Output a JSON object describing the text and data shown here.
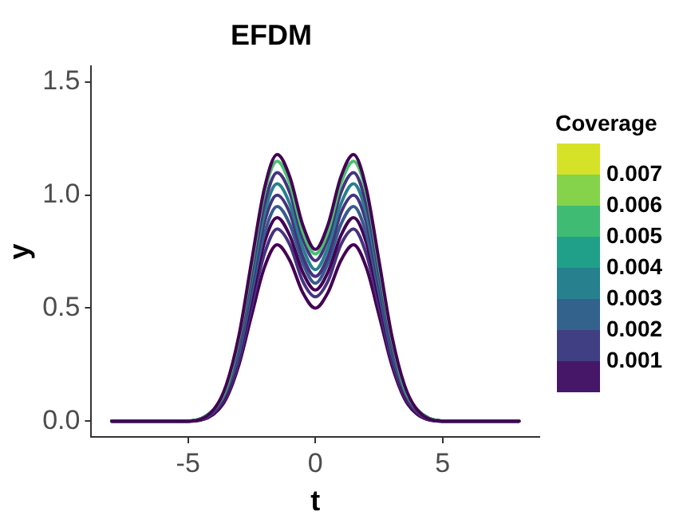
{
  "chart_data": {
    "type": "line",
    "title": "EFDM",
    "xlabel": "t",
    "ylabel": "y",
    "clabel": "Coverage",
    "clim": [
      0,
      0.008
    ],
    "cticks": [
      0.001,
      0.002,
      0.003,
      0.004,
      0.005,
      0.006,
      0.007
    ],
    "x": [
      -8,
      -5,
      -4,
      -3.5,
      -3,
      -2.5,
      -2,
      -1.5,
      -1,
      -0.5,
      0,
      0.5,
      1,
      1.5,
      2,
      2.5,
      3,
      3.5,
      4,
      5,
      8
    ],
    "xlim": [
      -8.8,
      8.8
    ],
    "xticks": [
      -5,
      0,
      5
    ],
    "ylim": [
      -0.07,
      1.57
    ],
    "yticks": [
      {
        "value": 0,
        "label": "0.0"
      },
      0.5,
      {
        "value": 1,
        "label": "1.0"
      },
      1.5
    ],
    "grid": false,
    "legend": false,
    "marker": "none",
    "line_style": "solid",
    "series": [
      {
        "color": "#440154",
        "values": [
          0,
          0,
          0.05,
          0.16,
          0.38,
          0.71,
          1.03,
          1.18,
          1.08,
          0.87,
          0.76,
          0.87,
          1.08,
          1.18,
          1.03,
          0.71,
          0.38,
          0.16,
          0.05,
          0,
          0
        ]
      },
      {
        "color": "#4ac16d",
        "values": [
          0,
          0,
          0.05,
          0.15,
          0.37,
          0.69,
          1.01,
          1.15,
          1.05,
          0.84,
          0.74,
          0.84,
          1.05,
          1.15,
          1.01,
          0.69,
          0.37,
          0.15,
          0.05,
          0,
          0
        ]
      },
      {
        "color": "#46337e",
        "values": [
          0,
          0,
          0.05,
          0.15,
          0.35,
          0.66,
          0.96,
          1.1,
          1.01,
          0.81,
          0.71,
          0.81,
          1.01,
          1.1,
          0.96,
          0.66,
          0.35,
          0.15,
          0.05,
          0,
          0
        ]
      },
      {
        "color": "#277f8e",
        "values": [
          0,
          0,
          0.05,
          0.14,
          0.34,
          0.63,
          0.92,
          1.05,
          0.96,
          0.77,
          0.67,
          0.77,
          0.96,
          1.05,
          0.92,
          0.63,
          0.34,
          0.14,
          0.05,
          0,
          0
        ]
      },
      {
        "color": "#46337e",
        "values": [
          0,
          0,
          0.04,
          0.13,
          0.32,
          0.6,
          0.88,
          1,
          0.92,
          0.73,
          0.64,
          0.73,
          0.92,
          1,
          0.88,
          0.6,
          0.32,
          0.13,
          0.04,
          0,
          0
        ]
      },
      {
        "color": "#365c8d",
        "values": [
          0,
          0,
          0.04,
          0.13,
          0.3,
          0.57,
          0.83,
          0.95,
          0.87,
          0.7,
          0.61,
          0.7,
          0.87,
          0.95,
          0.83,
          0.57,
          0.3,
          0.13,
          0.04,
          0,
          0
        ]
      },
      {
        "color": "#440154",
        "values": [
          0,
          0,
          0.04,
          0.12,
          0.29,
          0.54,
          0.79,
          0.9,
          0.82,
          0.66,
          0.58,
          0.66,
          0.82,
          0.9,
          0.79,
          0.54,
          0.29,
          0.12,
          0.04,
          0,
          0
        ]
      },
      {
        "color": "#46337e",
        "values": [
          0,
          0,
          0.04,
          0.11,
          0.27,
          0.51,
          0.74,
          0.85,
          0.78,
          0.62,
          0.55,
          0.62,
          0.78,
          0.85,
          0.74,
          0.51,
          0.27,
          0.11,
          0.04,
          0,
          0
        ]
      },
      {
        "color": "#440154",
        "values": [
          0,
          0,
          0.03,
          0.1,
          0.25,
          0.47,
          0.68,
          0.78,
          0.71,
          0.57,
          0.5,
          0.57,
          0.71,
          0.78,
          0.68,
          0.47,
          0.25,
          0.1,
          0.03,
          0,
          0
        ]
      }
    ]
  }
}
